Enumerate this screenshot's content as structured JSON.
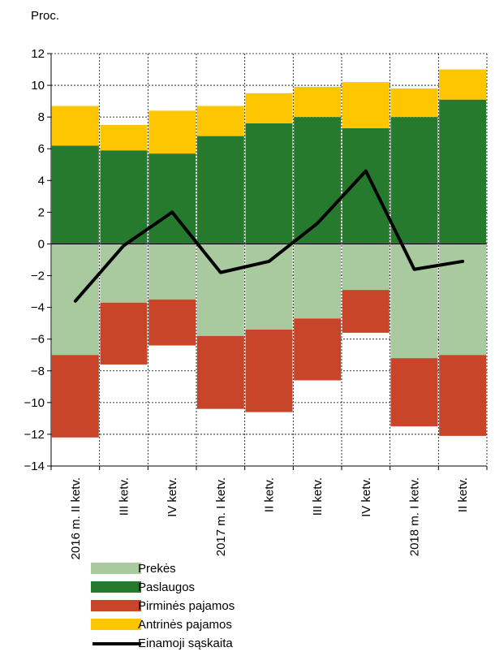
{
  "chart_data": {
    "type": "bar",
    "unit_label": "Proc.",
    "categories": [
      "2016 m. II ketv.",
      "III ketv.",
      "IV ketv.",
      "2017 m. I ketv.",
      "II ketv.",
      "III ketv.",
      "IV ketv.",
      "2018 m. I ketv.",
      "II ketv."
    ],
    "ylim": [
      -14,
      12
    ],
    "yticks": [
      12,
      10,
      8,
      6,
      4,
      2,
      0,
      -2,
      -4,
      -6,
      -8,
      -10,
      -12,
      -14
    ],
    "ytick_labels": [
      "12",
      "10",
      "8",
      "6",
      "4",
      "2",
      "0",
      "−2",
      "−4",
      "−6",
      "−8",
      "−10",
      "−12",
      "−14"
    ],
    "grid": true,
    "stacked": true,
    "series": [
      {
        "name": "Prekės",
        "color": "#a9c99f",
        "values": [
          -7.0,
          -3.7,
          -3.5,
          -5.8,
          -5.4,
          -4.7,
          -2.9,
          -7.2,
          -7.0
        ]
      },
      {
        "name": "Paslaugos",
        "color": "#267a2e",
        "values": [
          6.2,
          5.9,
          5.7,
          6.8,
          7.6,
          8.0,
          7.3,
          8.0,
          9.1
        ]
      },
      {
        "name": "Pirminės pajamos",
        "color": "#c8452a",
        "values": [
          -5.2,
          -3.9,
          -2.9,
          -4.6,
          -5.2,
          -3.9,
          -2.7,
          -4.3,
          -5.1
        ]
      },
      {
        "name": "Antrinės pajamos",
        "color": "#fdc600",
        "values": [
          2.5,
          1.6,
          2.7,
          1.9,
          1.9,
          1.9,
          2.9,
          1.8,
          1.9
        ]
      },
      {
        "name": "Einamoji sąskaita",
        "type": "line",
        "color": "#000000",
        "values": [
          -3.6,
          -0.1,
          2.0,
          -1.8,
          -1.1,
          1.3,
          4.6,
          -1.6,
          -1.1
        ]
      }
    ]
  }
}
